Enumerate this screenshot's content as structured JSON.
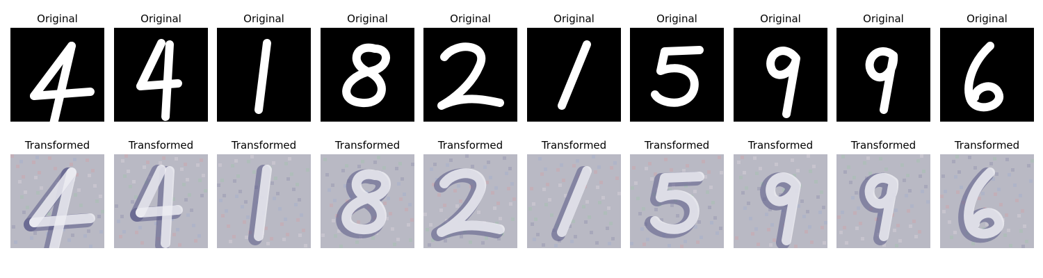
{
  "panels": [
    {
      "digit": "4",
      "original_title": "Original",
      "transformed_title": "Transformed"
    },
    {
      "digit": "4",
      "original_title": "Original",
      "transformed_title": "Transformed"
    },
    {
      "digit": "1",
      "original_title": "Original",
      "transformed_title": "Transformed"
    },
    {
      "digit": "8",
      "original_title": "Original",
      "transformed_title": "Transformed"
    },
    {
      "digit": "2",
      "original_title": "Original",
      "transformed_title": "Transformed"
    },
    {
      "digit": "1",
      "original_title": "Original",
      "transformed_title": "Transformed"
    },
    {
      "digit": "5",
      "original_title": "Original",
      "transformed_title": "Transformed"
    },
    {
      "digit": "9",
      "original_title": "Original",
      "transformed_title": "Transformed"
    },
    {
      "digit": "9",
      "original_title": "Original",
      "transformed_title": "Transformed"
    },
    {
      "digit": "6",
      "original_title": "Original",
      "transformed_title": "Transformed"
    }
  ],
  "colors": {
    "original_background": "#000000",
    "original_stroke": "#ffffff",
    "transformed_background": "#b9b9c4",
    "transformed_stroke": "#ececf2",
    "transformed_shadow": "#5a5a86"
  }
}
